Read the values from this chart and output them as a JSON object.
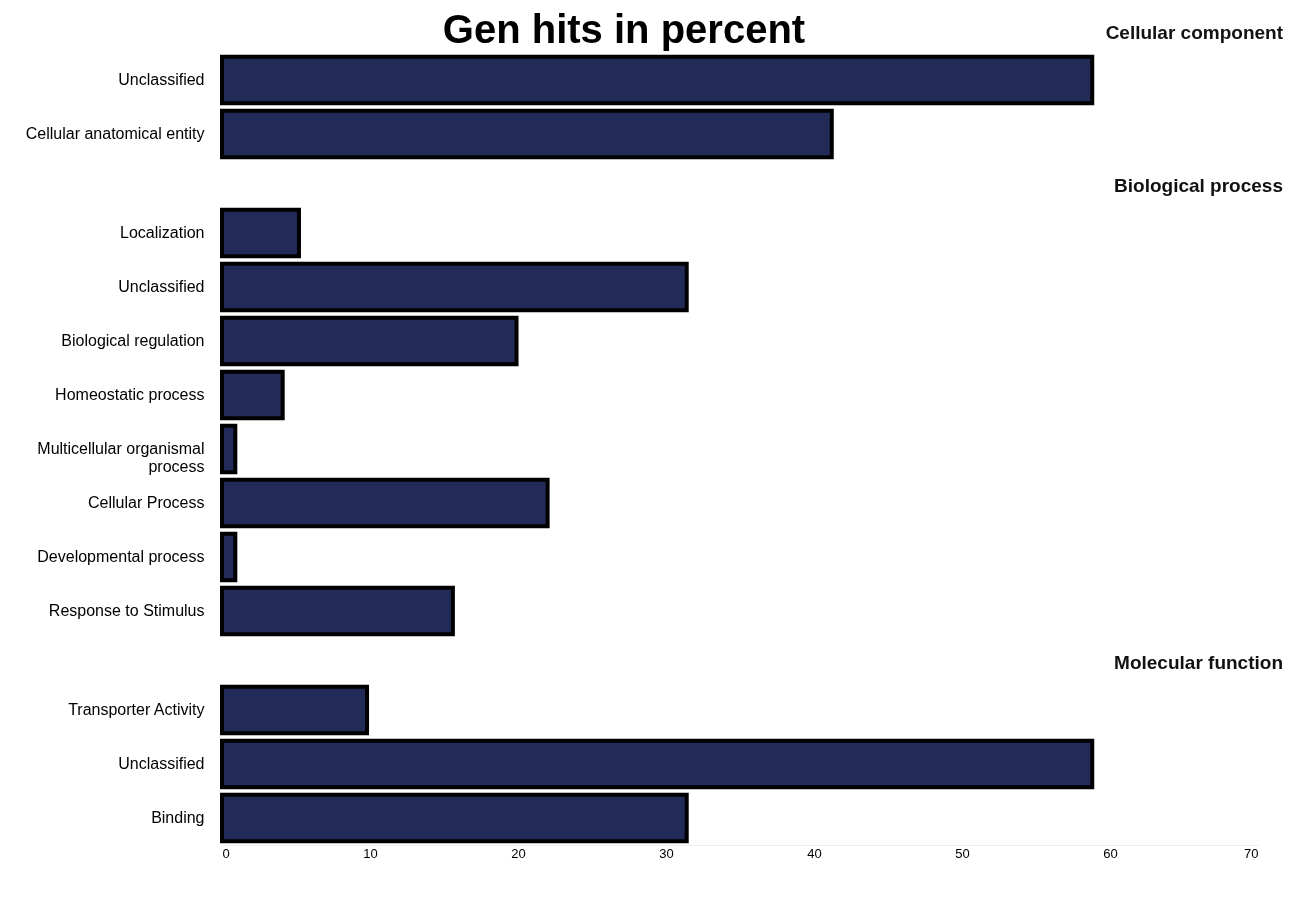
{
  "chart_data": [
    {
      "type": "bar",
      "orientation": "horizontal",
      "title": "Gen hits in percent",
      "subtitle": "Cellular component",
      "categories": [
        "Unclassified",
        "Cellular anatomical entity"
      ],
      "values": [
        58.8,
        41.2
      ],
      "color": "#222b58",
      "xlim": [
        0,
        70
      ],
      "xticks": [
        0,
        10,
        20,
        30,
        40,
        50,
        60,
        70
      ],
      "tick_labels": "y"
    },
    {
      "type": "bar",
      "orientation": "horizontal",
      "subtitle": "Biological process",
      "categories": [
        "Localization",
        "Unclassified",
        "Biological regulation",
        "Homeostatic process",
        "Multicellular organismal process",
        "Cellular Process",
        "Developmental process",
        "Response to Stimulus"
      ],
      "values": [
        5.2,
        31.4,
        19.9,
        4.1,
        0.9,
        22.0,
        0.9,
        15.6
      ],
      "color": "#222b58",
      "xlim": [
        0,
        70
      ],
      "xticks": [
        0,
        10,
        20,
        30,
        40,
        50,
        60,
        70
      ],
      "tick_labels": "y"
    },
    {
      "type": "bar",
      "orientation": "horizontal",
      "subtitle": "Molecular function",
      "categories": [
        "Transporter Activity",
        "Unclassified",
        "Binding"
      ],
      "values": [
        9.8,
        58.8,
        31.4
      ],
      "color": "#222b58",
      "xlim": [
        0,
        70
      ],
      "xticks": [
        0,
        10,
        20,
        30,
        40,
        50,
        60,
        70
      ]
    }
  ]
}
